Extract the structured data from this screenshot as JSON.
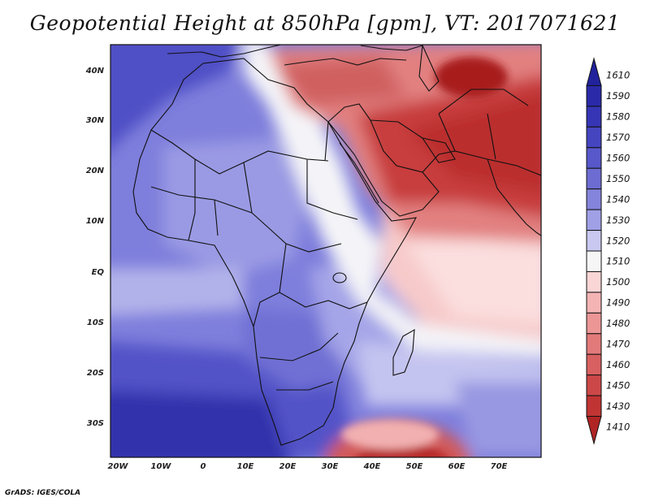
{
  "title": "Geopotential Height at 850hPa [gpm], VT: 2017071621",
  "credit": "GrADS: IGES/COLA",
  "axes": {
    "lat_labels": [
      "40N",
      "30N",
      "20N",
      "10N",
      "EQ",
      "10S",
      "20S",
      "30S"
    ],
    "lon_labels": [
      "20W",
      "10W",
      "0",
      "10E",
      "20E",
      "30E",
      "40E",
      "50E",
      "60E",
      "70E"
    ]
  },
  "colorbar": {
    "levels": [
      {
        "label": "1610",
        "color": "#22229c"
      },
      {
        "label": "1590",
        "color": "#2a2aa8"
      },
      {
        "label": "1580",
        "color": "#3535b5"
      },
      {
        "label": "1570",
        "color": "#4545c0"
      },
      {
        "label": "1560",
        "color": "#5858ca"
      },
      {
        "label": "1550",
        "color": "#6c6cd2"
      },
      {
        "label": "1540",
        "color": "#8484dc"
      },
      {
        "label": "1530",
        "color": "#a0a0e6"
      },
      {
        "label": "1520",
        "color": "#c8c8f0"
      },
      {
        "label": "1510",
        "color": "#f6f6f6"
      },
      {
        "label": "1500",
        "color": "#fbd6d6"
      },
      {
        "label": "1490",
        "color": "#f4b4b4"
      },
      {
        "label": "1480",
        "color": "#ec9696"
      },
      {
        "label": "1470",
        "color": "#e27a7a"
      },
      {
        "label": "1460",
        "color": "#d86060"
      },
      {
        "label": "1450",
        "color": "#cc4848"
      },
      {
        "label": "1430",
        "color": "#c03434"
      },
      {
        "label": "1410",
        "color": "#b02424"
      }
    ]
  }
}
